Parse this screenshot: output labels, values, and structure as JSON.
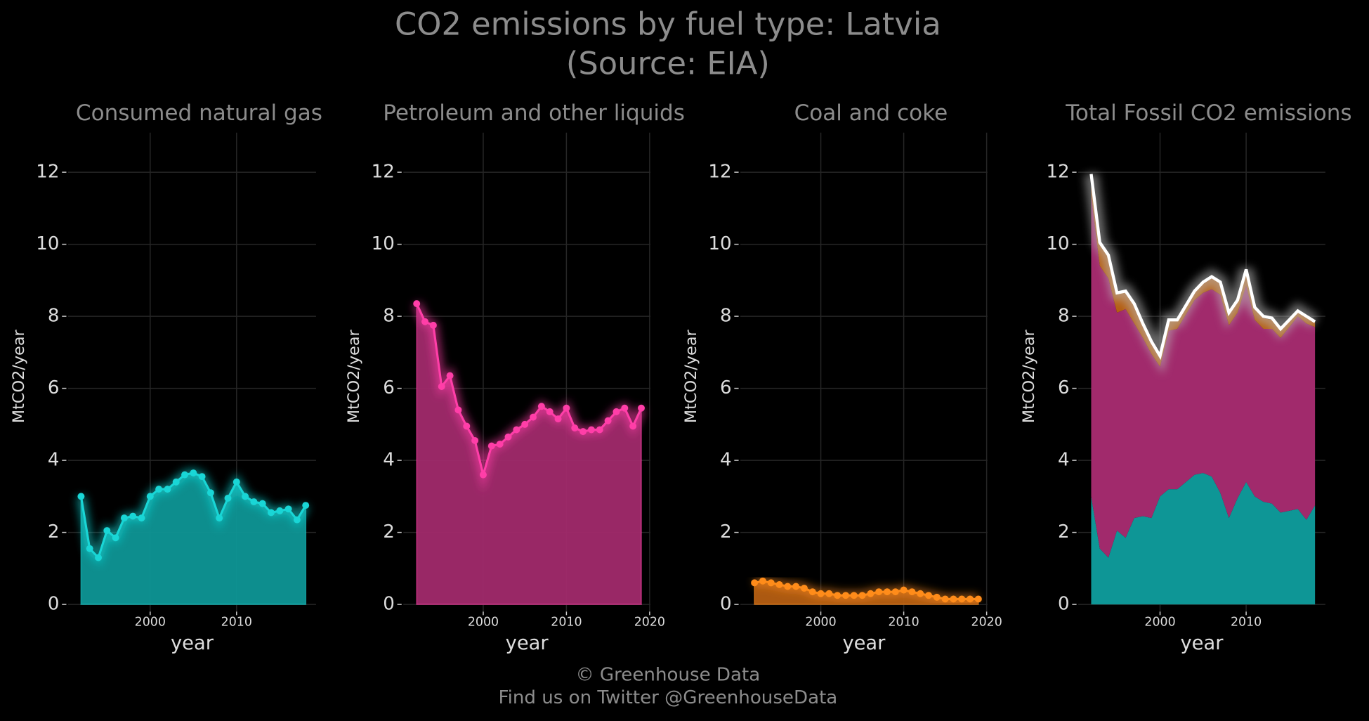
{
  "title": "CO2 emissions by fuel type: Latvia",
  "subtitle": "(Source: EIA)",
  "footer": [
    "© Greenhouse Data",
    "Find us on Twitter @GreenhouseData"
  ],
  "chart_data": [
    {
      "type": "area",
      "title": "Consumed natural gas",
      "x_label": "year",
      "y_label": "MtCO2/year",
      "x": [
        1992,
        1993,
        1994,
        1995,
        1996,
        1997,
        1998,
        1999,
        2000,
        2001,
        2002,
        2003,
        2004,
        2005,
        2006,
        2007,
        2008,
        2009,
        2010,
        2011,
        2012,
        2013,
        2014,
        2015,
        2016,
        2017,
        2018
      ],
      "values": [
        3.0,
        1.55,
        1.3,
        2.05,
        1.85,
        2.4,
        2.45,
        2.4,
        3.0,
        3.2,
        3.2,
        3.4,
        3.6,
        3.65,
        3.55,
        3.1,
        2.4,
        2.95,
        3.4,
        3.0,
        2.85,
        2.8,
        2.55,
        2.6,
        2.65,
        2.35,
        2.75
      ],
      "color": "#19d6d6",
      "fill": "#0e9696",
      "xlim": [
        1990.5,
        2019.2
      ],
      "xticks": [
        2000,
        2010
      ],
      "ylim": [
        -0.2,
        13.1
      ],
      "yticks": [
        0,
        2,
        4,
        6,
        8,
        10,
        12
      ],
      "grid": true
    },
    {
      "type": "area",
      "title": "Petroleum and other liquids",
      "x_label": "year",
      "y_label": "MtCO2/year",
      "x": [
        1992,
        1993,
        1994,
        1995,
        1996,
        1997,
        1998,
        1999,
        2000,
        2001,
        2002,
        2003,
        2004,
        2005,
        2006,
        2007,
        2008,
        2009,
        2010,
        2011,
        2012,
        2013,
        2014,
        2015,
        2016,
        2017,
        2018,
        2019
      ],
      "values": [
        8.35,
        7.85,
        7.75,
        6.05,
        6.35,
        5.4,
        4.95,
        4.55,
        3.6,
        4.4,
        4.45,
        4.65,
        4.85,
        5.0,
        5.2,
        5.5,
        5.35,
        5.15,
        5.45,
        4.9,
        4.8,
        4.85,
        4.85,
        5.1,
        5.35,
        5.45,
        4.95,
        5.45
      ],
      "color": "#ff3ea8",
      "fill": "#a12a6c",
      "xlim": [
        1990.4,
        2020.1
      ],
      "xticks": [
        2000,
        2010,
        2020
      ],
      "ylim": [
        -0.2,
        13.1
      ],
      "yticks": [
        0,
        2,
        4,
        6,
        8,
        10,
        12
      ],
      "grid": true
    },
    {
      "type": "area",
      "title": "Coal and coke",
      "x_label": "year",
      "y_label": "MtCO2/year",
      "x": [
        1992,
        1993,
        1994,
        1995,
        1996,
        1997,
        1998,
        1999,
        2000,
        2001,
        2002,
        2003,
        2004,
        2005,
        2006,
        2007,
        2008,
        2009,
        2010,
        2011,
        2012,
        2013,
        2014,
        2015,
        2016,
        2017,
        2018,
        2019
      ],
      "values": [
        0.6,
        0.65,
        0.6,
        0.55,
        0.5,
        0.5,
        0.45,
        0.35,
        0.3,
        0.3,
        0.25,
        0.25,
        0.25,
        0.25,
        0.3,
        0.35,
        0.35,
        0.35,
        0.4,
        0.35,
        0.3,
        0.25,
        0.2,
        0.15,
        0.15,
        0.15,
        0.15,
        0.15
      ],
      "color": "#ff8c1a",
      "fill": "#b55e12",
      "xlim": [
        1990.3,
        2020.1
      ],
      "xticks": [
        2000,
        2010,
        2020
      ],
      "ylim": [
        -0.2,
        13.1
      ],
      "yticks": [
        0,
        2,
        4,
        6,
        8,
        10,
        12
      ],
      "grid": true
    },
    {
      "type": "stacked_area",
      "title": "Total Fossil CO2 emissions",
      "x_label": "year",
      "y_label": "MtCO2/year",
      "x": [
        1992,
        1993,
        1994,
        1995,
        1996,
        1997,
        1998,
        1999,
        2000,
        2001,
        2002,
        2003,
        2004,
        2005,
        2006,
        2007,
        2008,
        2009,
        2010,
        2011,
        2012,
        2013,
        2014,
        2015,
        2016,
        2017,
        2018
      ],
      "series": [
        {
          "color": "#0e9696",
          "values": [
            3.0,
            1.55,
            1.3,
            2.05,
            1.85,
            2.4,
            2.45,
            2.4,
            3.0,
            3.2,
            3.2,
            3.4,
            3.6,
            3.65,
            3.55,
            3.1,
            2.4,
            2.95,
            3.4,
            3.0,
            2.85,
            2.8,
            2.55,
            2.6,
            2.65,
            2.35,
            2.75
          ]
        },
        {
          "color": "#a12a6c",
          "values": [
            8.35,
            7.85,
            7.75,
            6.05,
            6.35,
            5.4,
            4.95,
            4.55,
            3.6,
            4.4,
            4.45,
            4.65,
            4.85,
            5.0,
            5.2,
            5.5,
            5.35,
            5.15,
            5.45,
            4.9,
            4.8,
            4.85,
            4.85,
            5.1,
            5.35,
            5.45,
            4.95
          ]
        },
        {
          "color": "#b55e12",
          "values": [
            0.6,
            0.65,
            0.6,
            0.55,
            0.5,
            0.5,
            0.45,
            0.35,
            0.3,
            0.3,
            0.25,
            0.25,
            0.25,
            0.25,
            0.3,
            0.35,
            0.35,
            0.35,
            0.4,
            0.35,
            0.3,
            0.25,
            0.2,
            0.15,
            0.15,
            0.15,
            0.15
          ]
        }
      ],
      "total": {
        "color": "#ffffff",
        "values": [
          11.95,
          10.05,
          9.7,
          8.65,
          8.7,
          8.35,
          7.8,
          7.3,
          6.9,
          7.9,
          7.9,
          8.3,
          8.7,
          8.95,
          9.1,
          8.95,
          8.1,
          8.45,
          9.3,
          8.25,
          8.0,
          7.95,
          7.65,
          7.9,
          8.15,
          8.0,
          7.85
        ]
      },
      "xlim": [
        1990.5,
        2019.2
      ],
      "xticks": [
        2000,
        2010
      ],
      "ylim": [
        -0.2,
        13.1
      ],
      "yticks": [
        0,
        2,
        4,
        6,
        8,
        10,
        12
      ],
      "grid": true
    }
  ]
}
